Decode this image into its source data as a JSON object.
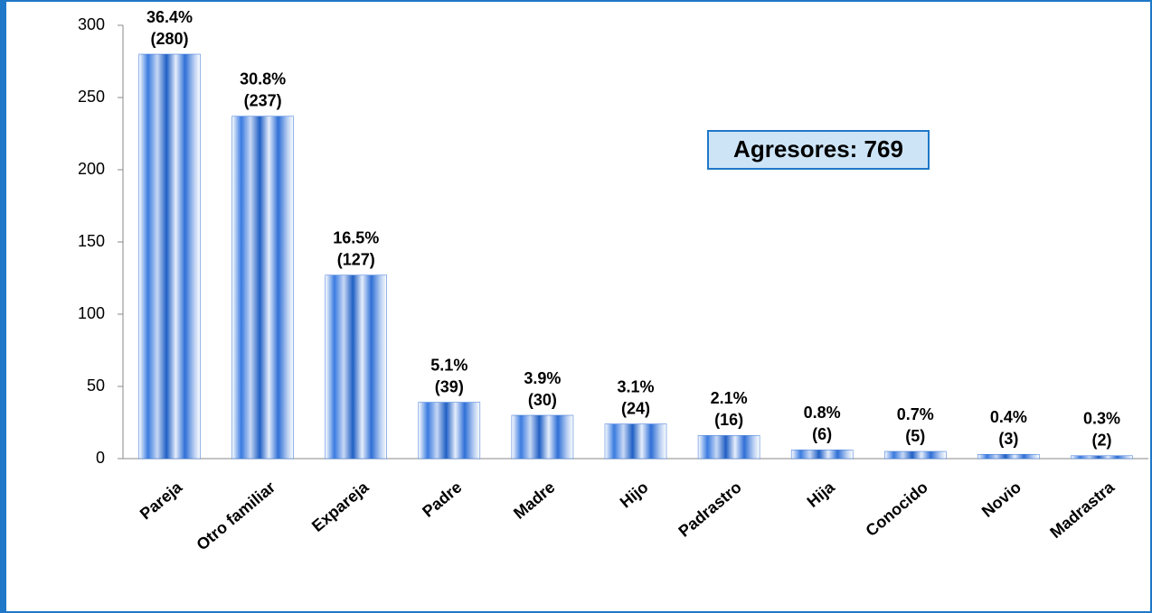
{
  "chart_data": {
    "type": "bar",
    "annotation": "Agresores: 769",
    "categories": [
      "Pareja",
      "Otro familiar",
      "Expareja",
      "Padre",
      "Madre",
      "Hijo",
      "Padrastro",
      "Hija",
      "Conocido",
      "Novio",
      "Madrastra"
    ],
    "values": [
      280,
      237,
      127,
      39,
      30,
      24,
      16,
      6,
      5,
      3,
      2
    ],
    "value_labels": [
      "(280)",
      "(237)",
      "(127)",
      "(39)",
      "(30)",
      "(24)",
      "(16)",
      "(6)",
      "(5)",
      "(3)",
      "(2)"
    ],
    "percent_labels": [
      "36.4%",
      "30.8%",
      "16.5%",
      "5.1%",
      "3.9%",
      "3.1%",
      "2.1%",
      "0.8%",
      "0.7%",
      "0.4%",
      "0.3%"
    ],
    "color": "#2f6fd6",
    "ylim": [
      0,
      300
    ],
    "yticks": [
      0,
      50,
      100,
      150,
      200,
      250,
      300
    ]
  }
}
